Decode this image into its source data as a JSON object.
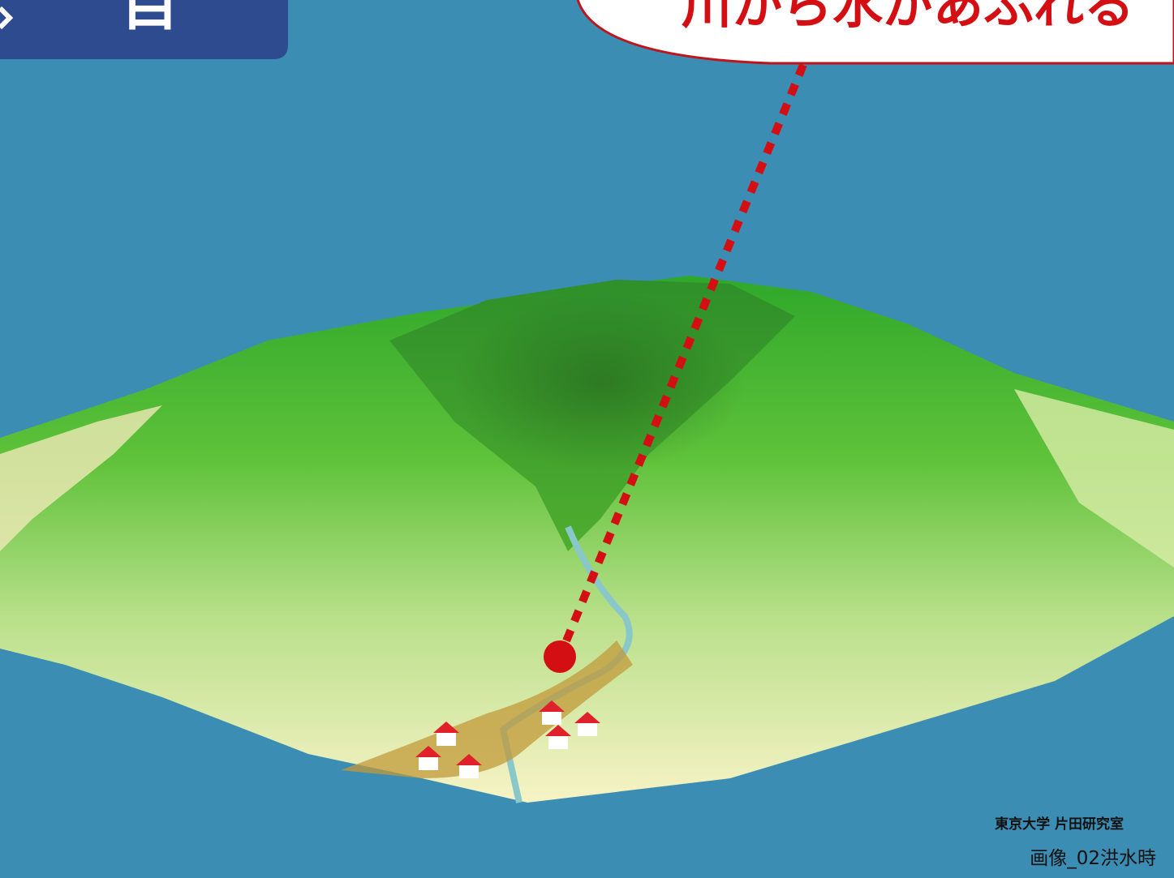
{
  "header": {
    "badge": "目"
  },
  "callout": {
    "text": "川から水があふれる"
  },
  "credit": {
    "source": "東京大学 片田研究室",
    "caption": "画像_02洪水時"
  }
}
